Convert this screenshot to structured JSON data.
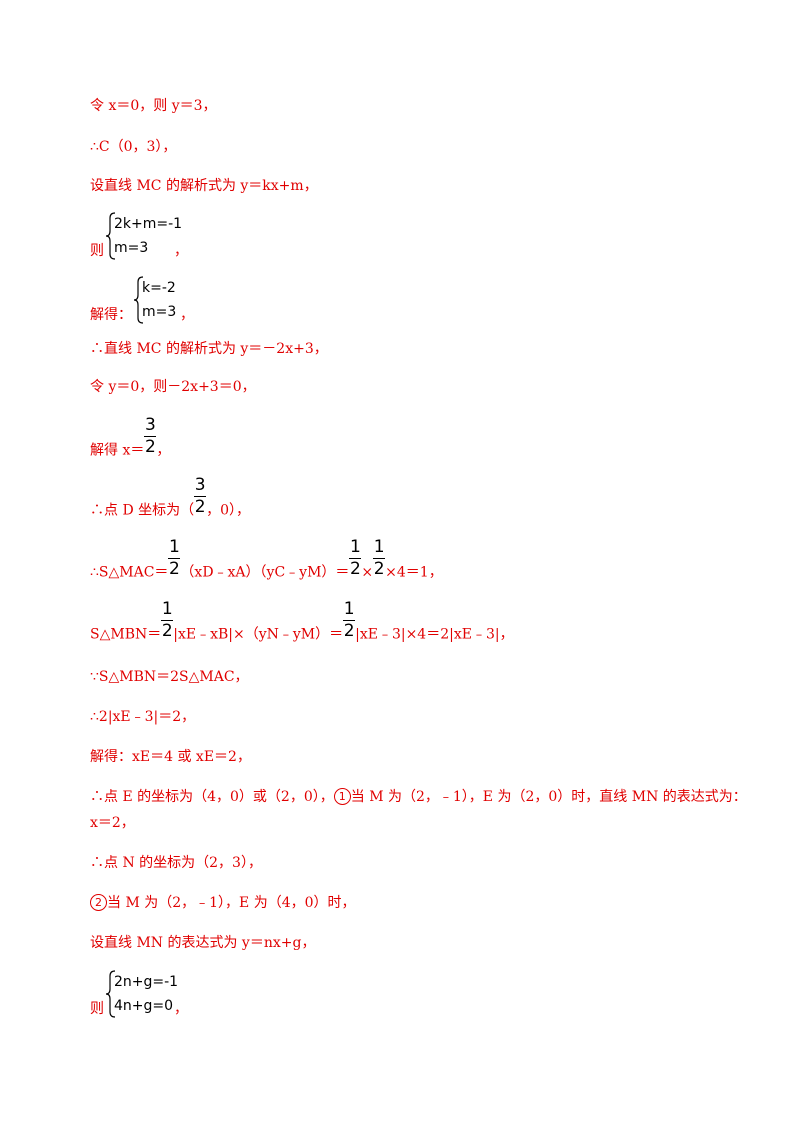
{
  "lines": {
    "l1": "令 x＝0，则 y＝3，",
    "l2": "∴C（0，3），",
    "l3": "设直线 MC 的解析式为 y＝kx+m，",
    "sys1_pre": "则",
    "sys1_r1": "2k+m=-1",
    "sys1_r2": "m=3",
    "sys1_post": "，",
    "sys2_pre": "解得：",
    "sys2_r1": "k=-2",
    "sys2_r2": "m=3",
    "sys2_post": "，",
    "l4": "∴直线 MC 的解析式为 y＝－2x+3，",
    "l5": "令 y＝0，则－2x+3＝0，",
    "l6_pre": "解得 x＝",
    "l6_post": "，",
    "l7_pre": "∴点 D 坐标为（",
    "l7_post": "，0），",
    "l8_pre": "∴S△MAC＝",
    "l8_mid": "（xD﹣xA）（yC﹣yM）＝",
    "l8_times": "×",
    "l8_post": "×4＝1，",
    "l9_pre": "S△MBN＝",
    "l9_mid": "|xE﹣xB|×（yN﹣yM）＝",
    "l9_post": "|xE﹣3|×4＝2|xE﹣3|，",
    "l10": "∵S△MBN＝2S△MAC，",
    "l11": "∴2|xE﹣3|＝2，",
    "l12": "解得：xE＝4 或 xE＝2，",
    "l13a": "∴点 E 的坐标为（4，0）或（2，0），",
    "l13b": "当 M 为（2，﹣1），E 为（2，0）时，直线 MN 的表达式为：",
    "l13c": "x＝2，",
    "l14": "∴点 N 的坐标为（2，3），",
    "l15": "当 M 为（2，﹣1），E 为（4，0）时，",
    "l16": "设直线 MN 的表达式为 y＝nx+g，",
    "sys3_pre": "则",
    "sys3_r1": "2n+g=-1",
    "sys3_r2": "4n+g=0",
    "sys3_post": "，"
  },
  "circled": {
    "one": "1",
    "two": "2"
  },
  "fractions": {
    "three_halves_num": "3",
    "three_halves_den": "2",
    "half_num": "1",
    "half_den": "2"
  }
}
